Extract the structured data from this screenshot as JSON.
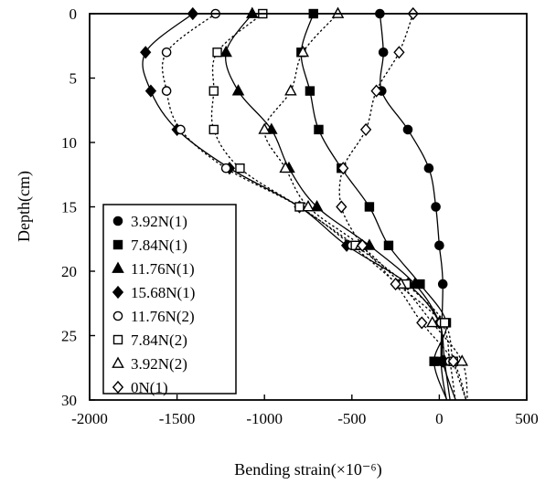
{
  "chart_data": {
    "type": "line",
    "xlabel": "Bending strain(×10⁻⁶)",
    "ylabel": "Depth(cm)",
    "xlim": [
      -2000,
      500
    ],
    "ylim": [
      30,
      0
    ],
    "y_inverted": true,
    "x_ticks": [
      -2000,
      -1500,
      -1000,
      -500,
      0,
      500
    ],
    "y_ticks": [
      0,
      5,
      10,
      15,
      20,
      25,
      30
    ],
    "grid": false,
    "legend_position": "bottom-left inside plot",
    "series": [
      {
        "name": "3.92N(1)",
        "marker": "filled-circle",
        "line": "solid",
        "x": [
          -340,
          -320,
          -330,
          -180,
          -60,
          -20,
          0,
          20,
          10
        ],
        "y": [
          0,
          3,
          6,
          9,
          12,
          15,
          18,
          21,
          27
        ]
      },
      {
        "name": "7.84N(1)",
        "marker": "filled-square",
        "line": "solid",
        "x": [
          -720,
          -790,
          -740,
          -690,
          -560,
          -400,
          -290,
          -110,
          40,
          -30
        ],
        "y": [
          0,
          3,
          6,
          9,
          12,
          15,
          18,
          21,
          24,
          27
        ]
      },
      {
        "name": "11.76N(1)",
        "marker": "filled-triangle",
        "line": "solid",
        "x": [
          -1070,
          -1220,
          -1150,
          -960,
          -860,
          -700,
          -400,
          -140,
          0,
          30
        ],
        "y": [
          0,
          3,
          6,
          9,
          12,
          15,
          18,
          21,
          24,
          27
        ]
      },
      {
        "name": "15.68N(1)",
        "marker": "filled-diamond",
        "line": "solid",
        "x": [
          -1410,
          -1680,
          -1650,
          -1500,
          -1200,
          -800,
          -530,
          -180,
          0,
          20
        ],
        "y": [
          0,
          3,
          6,
          9,
          12,
          15,
          18,
          21,
          24,
          27
        ]
      },
      {
        "name": "11.76N(2)",
        "marker": "open-circle",
        "line": "dotted",
        "x": [
          -1280,
          -1560,
          -1560,
          -1480,
          -1220,
          -800,
          -500,
          -240,
          10,
          60
        ],
        "y": [
          0,
          3,
          6,
          9,
          12,
          15,
          18,
          21,
          24,
          27
        ]
      },
      {
        "name": "7.84N(2)",
        "marker": "open-square",
        "line": "dotted",
        "x": [
          -1010,
          -1270,
          -1290,
          -1290,
          -1140,
          -800,
          -480,
          -190,
          30,
          80
        ],
        "y": [
          0,
          3,
          6,
          9,
          12,
          15,
          18,
          21,
          24,
          27
        ]
      },
      {
        "name": "3.92N(2)",
        "marker": "open-triangle",
        "line": "dotted",
        "x": [
          -580,
          -780,
          -850,
          -1000,
          -880,
          -750,
          -450,
          -220,
          -40,
          130
        ],
        "y": [
          0,
          3,
          6,
          9,
          12,
          15,
          18,
          21,
          24,
          27
        ]
      },
      {
        "name": "0N(1)",
        "marker": "open-diamond",
        "line": "dotted",
        "x": [
          -150,
          -230,
          -360,
          -420,
          -550,
          -560,
          -440,
          -250,
          -100,
          80
        ],
        "y": [
          0,
          3,
          6,
          9,
          12,
          15,
          18,
          21,
          24,
          27
        ]
      }
    ]
  }
}
